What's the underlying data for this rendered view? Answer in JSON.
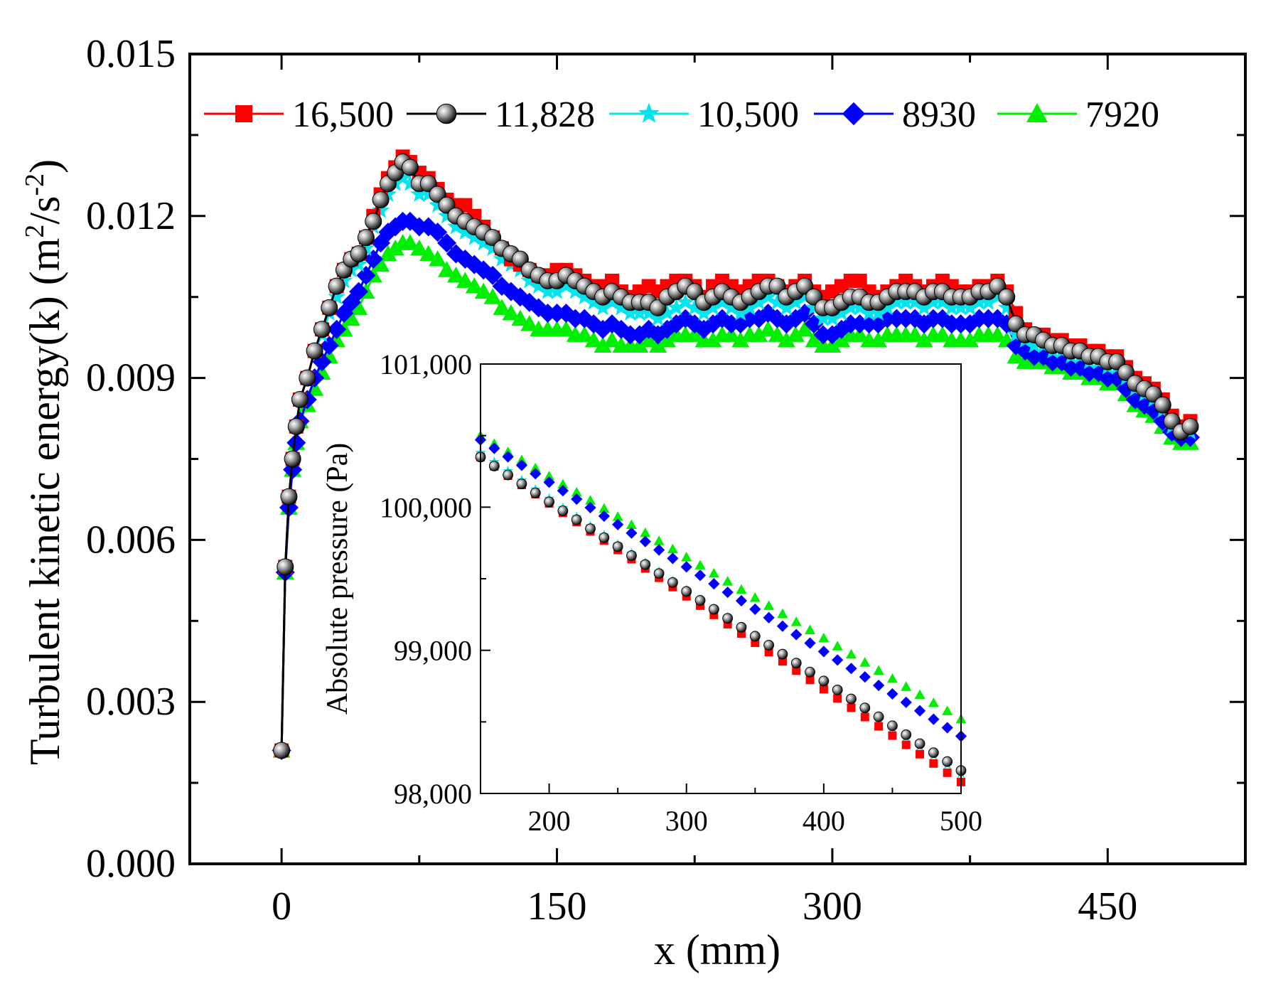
{
  "chart_data": [
    {
      "id": "main",
      "type": "line",
      "title": "",
      "xlabel": "x (mm)",
      "ylabel": "Turbulent kinetic energy(k) (m²/s⁻²)",
      "ylabel_parts": {
        "base": "Turbulent kinetic energy(k) (m",
        "sup1": "2",
        "mid": "/s",
        "sup2": "-2",
        "end": ")"
      },
      "xlim": [
        -50,
        525
      ],
      "ylim": [
        0,
        0.015
      ],
      "x_ticks": [
        0,
        150,
        300,
        450
      ],
      "x_tick_labels": [
        "0",
        "150",
        "300",
        "450"
      ],
      "y_ticks": [
        0,
        0.003,
        0.006,
        0.009,
        0.012,
        0.015
      ],
      "y_tick_labels": [
        "0.000",
        "0.003",
        "0.006",
        "0.009",
        "0.012",
        "0.015"
      ],
      "grid": false,
      "legend_position": "top",
      "x": [
        0,
        2,
        4,
        6,
        8,
        10,
        14,
        18,
        22,
        26,
        30,
        34,
        38,
        42,
        46,
        50,
        54,
        58,
        62,
        66,
        70,
        75,
        80,
        85,
        90,
        95,
        100,
        105,
        110,
        115,
        120,
        125,
        130,
        135,
        140,
        145,
        150,
        155,
        160,
        165,
        170,
        175,
        180,
        185,
        190,
        195,
        200,
        205,
        210,
        215,
        220,
        225,
        230,
        235,
        240,
        245,
        250,
        255,
        260,
        265,
        270,
        275,
        280,
        285,
        290,
        295,
        300,
        305,
        310,
        315,
        320,
        325,
        330,
        335,
        340,
        345,
        350,
        355,
        360,
        365,
        370,
        375,
        380,
        385,
        390,
        395,
        400,
        405,
        410,
        415,
        420,
        425,
        430,
        435,
        440,
        445,
        450,
        455,
        460,
        465,
        470,
        475,
        480,
        485,
        490,
        495
      ],
      "series": [
        {
          "name": "16,500",
          "color": "#ff0000",
          "marker": "square",
          "values": [
            0.0021,
            0.0055,
            0.0068,
            0.0075,
            0.0081,
            0.0086,
            0.009,
            0.0095,
            0.0099,
            0.0103,
            0.0107,
            0.011,
            0.0112,
            0.0113,
            0.0116,
            0.012,
            0.0124,
            0.0127,
            0.0129,
            0.0131,
            0.013,
            0.0128,
            0.0127,
            0.0125,
            0.0123,
            0.0122,
            0.0122,
            0.012,
            0.0118,
            0.0116,
            0.0114,
            0.0112,
            0.0111,
            0.011,
            0.0109,
            0.0109,
            0.011,
            0.011,
            0.0109,
            0.0108,
            0.0107,
            0.0107,
            0.0108,
            0.0106,
            0.0105,
            0.0106,
            0.0107,
            0.0106,
            0.0107,
            0.0108,
            0.0108,
            0.0107,
            0.0105,
            0.0107,
            0.0108,
            0.0107,
            0.0106,
            0.0107,
            0.0108,
            0.0108,
            0.0107,
            0.0106,
            0.0107,
            0.0108,
            0.0106,
            0.0105,
            0.0106,
            0.0107,
            0.0108,
            0.0108,
            0.0106,
            0.0105,
            0.0106,
            0.0107,
            0.0108,
            0.0107,
            0.0106,
            0.0107,
            0.0108,
            0.0107,
            0.0106,
            0.0106,
            0.0107,
            0.0107,
            0.0108,
            0.0106,
            0.0102,
            0.0099,
            0.0098,
            0.0098,
            0.0097,
            0.0097,
            0.0096,
            0.0096,
            0.0095,
            0.0095,
            0.0094,
            0.0094,
            0.0092,
            0.009,
            0.0089,
            0.0088,
            0.0086,
            0.0083,
            0.0081,
            0.0082
          ]
        },
        {
          "name": "11,828",
          "color": "#000000",
          "marker": "sphere",
          "values": [
            0.0021,
            0.0055,
            0.0068,
            0.0075,
            0.0081,
            0.0086,
            0.009,
            0.0095,
            0.0099,
            0.0103,
            0.0107,
            0.011,
            0.0112,
            0.0113,
            0.0116,
            0.0119,
            0.0123,
            0.0126,
            0.0128,
            0.013,
            0.0129,
            0.0126,
            0.0126,
            0.0124,
            0.0122,
            0.012,
            0.0119,
            0.0118,
            0.0117,
            0.0116,
            0.0114,
            0.0113,
            0.0112,
            0.011,
            0.0109,
            0.0108,
            0.0108,
            0.0109,
            0.0108,
            0.0107,
            0.0106,
            0.0105,
            0.0106,
            0.0105,
            0.0104,
            0.0104,
            0.0104,
            0.0103,
            0.0105,
            0.0106,
            0.0107,
            0.0106,
            0.0104,
            0.0105,
            0.0106,
            0.0105,
            0.0104,
            0.0105,
            0.0106,
            0.0107,
            0.0107,
            0.0105,
            0.0106,
            0.0107,
            0.0105,
            0.0103,
            0.0103,
            0.0104,
            0.0105,
            0.0105,
            0.0104,
            0.0104,
            0.0105,
            0.0106,
            0.0106,
            0.0106,
            0.0105,
            0.0106,
            0.0106,
            0.0105,
            0.0105,
            0.0105,
            0.0106,
            0.0106,
            0.0107,
            0.0105,
            0.01,
            0.0098,
            0.0098,
            0.0097,
            0.0096,
            0.0096,
            0.0095,
            0.0095,
            0.0094,
            0.0094,
            0.0093,
            0.0093,
            0.0091,
            0.0089,
            0.0088,
            0.0087,
            0.0085,
            0.0082,
            0.008,
            0.0081
          ]
        },
        {
          "name": "10,500",
          "color": "#00e5ee",
          "marker": "star",
          "values": [
            0.0021,
            0.0055,
            0.0068,
            0.0075,
            0.0081,
            0.0086,
            0.009,
            0.0095,
            0.0098,
            0.0102,
            0.0105,
            0.0108,
            0.011,
            0.0111,
            0.0114,
            0.0118,
            0.0121,
            0.0124,
            0.0126,
            0.0127,
            0.0126,
            0.0124,
            0.0124,
            0.0122,
            0.012,
            0.0118,
            0.0117,
            0.0116,
            0.0115,
            0.0114,
            0.0112,
            0.0111,
            0.011,
            0.0108,
            0.0107,
            0.0106,
            0.0106,
            0.0107,
            0.0106,
            0.0105,
            0.0104,
            0.0103,
            0.0104,
            0.0103,
            0.0102,
            0.0102,
            0.0102,
            0.0101,
            0.0102,
            0.0103,
            0.0104,
            0.0103,
            0.0102,
            0.0103,
            0.0104,
            0.0103,
            0.0102,
            0.0103,
            0.0104,
            0.0105,
            0.0104,
            0.0103,
            0.0104,
            0.0105,
            0.0103,
            0.0101,
            0.0101,
            0.0102,
            0.0103,
            0.0103,
            0.0102,
            0.0102,
            0.0103,
            0.0104,
            0.0104,
            0.0104,
            0.0103,
            0.0104,
            0.0104,
            0.0103,
            0.0103,
            0.0103,
            0.0104,
            0.0104,
            0.0105,
            0.0103,
            0.0098,
            0.0097,
            0.0096,
            0.0096,
            0.0095,
            0.0095,
            0.0094,
            0.0094,
            0.0093,
            0.0093,
            0.0092,
            0.0092,
            0.009,
            0.0088,
            0.0087,
            0.0086,
            0.0084,
            0.0081,
            0.008,
            0.008
          ]
        },
        {
          "name": "8930",
          "color": "#0000ff",
          "marker": "diamond",
          "values": [
            0.0021,
            0.0054,
            0.0066,
            0.0073,
            0.0078,
            0.0082,
            0.0086,
            0.009,
            0.0093,
            0.0096,
            0.0099,
            0.0102,
            0.0104,
            0.0106,
            0.0109,
            0.0112,
            0.0115,
            0.0117,
            0.0118,
            0.0119,
            0.0119,
            0.0118,
            0.0118,
            0.0117,
            0.0115,
            0.0113,
            0.0112,
            0.0111,
            0.011,
            0.0109,
            0.0107,
            0.0106,
            0.0105,
            0.0104,
            0.0103,
            0.0102,
            0.0102,
            0.0102,
            0.0101,
            0.0101,
            0.01,
            0.0099,
            0.01,
            0.0099,
            0.0098,
            0.0098,
            0.0099,
            0.0098,
            0.0099,
            0.01,
            0.0101,
            0.01,
            0.0099,
            0.01,
            0.0101,
            0.01,
            0.01,
            0.0101,
            0.0101,
            0.0102,
            0.0101,
            0.01,
            0.0101,
            0.0102,
            0.01,
            0.0098,
            0.0098,
            0.0099,
            0.01,
            0.01,
            0.01,
            0.01,
            0.0101,
            0.0101,
            0.0101,
            0.0101,
            0.01,
            0.0101,
            0.0101,
            0.01,
            0.01,
            0.01,
            0.0101,
            0.0101,
            0.0101,
            0.01,
            0.0096,
            0.0095,
            0.0094,
            0.0094,
            0.0093,
            0.0093,
            0.0092,
            0.0092,
            0.0091,
            0.0091,
            0.009,
            0.009,
            0.0088,
            0.0086,
            0.0085,
            0.0084,
            0.0082,
            0.008,
            0.0079,
            0.0079
          ]
        },
        {
          "name": "7920",
          "color": "#00ee00",
          "marker": "triangle",
          "values": [
            0.0021,
            0.0054,
            0.0066,
            0.0073,
            0.0078,
            0.0082,
            0.0085,
            0.0088,
            0.0091,
            0.0094,
            0.0097,
            0.0099,
            0.0101,
            0.0103,
            0.0106,
            0.0109,
            0.0111,
            0.0113,
            0.0114,
            0.0115,
            0.0115,
            0.0114,
            0.0113,
            0.0112,
            0.011,
            0.0109,
            0.0108,
            0.0107,
            0.0106,
            0.0105,
            0.0103,
            0.0102,
            0.0101,
            0.01,
            0.0099,
            0.0099,
            0.0099,
            0.0099,
            0.0098,
            0.0098,
            0.0097,
            0.0096,
            0.0097,
            0.0096,
            0.0096,
            0.0096,
            0.0097,
            0.0096,
            0.0097,
            0.0098,
            0.0098,
            0.0098,
            0.0097,
            0.0097,
            0.0098,
            0.0098,
            0.0097,
            0.0098,
            0.0098,
            0.0099,
            0.0098,
            0.0097,
            0.0098,
            0.0099,
            0.0097,
            0.0096,
            0.0096,
            0.0097,
            0.0098,
            0.0098,
            0.0097,
            0.0097,
            0.0098,
            0.0098,
            0.0098,
            0.0098,
            0.0097,
            0.0098,
            0.0098,
            0.0097,
            0.0097,
            0.0097,
            0.0098,
            0.0098,
            0.0098,
            0.0097,
            0.0094,
            0.0093,
            0.0093,
            0.0093,
            0.0092,
            0.0092,
            0.0091,
            0.0091,
            0.009,
            0.009,
            0.0089,
            0.0089,
            0.0087,
            0.0085,
            0.0084,
            0.0083,
            0.0081,
            0.0079,
            0.0078,
            0.0078
          ]
        }
      ]
    },
    {
      "id": "inset",
      "type": "scatter",
      "title": "",
      "xlabel": "",
      "ylabel": "Absolute pressure (Pa)",
      "xlim": [
        150,
        500
      ],
      "ylim": [
        98000,
        101000
      ],
      "x_ticks": [
        200,
        300,
        400,
        500
      ],
      "x_tick_labels": [
        "200",
        "300",
        "400",
        "500"
      ],
      "y_ticks": [
        98000,
        99000,
        100000,
        101000
      ],
      "y_tick_labels": [
        "98,000",
        "99,000",
        "100,000",
        "101,000"
      ],
      "grid": false,
      "series": [
        {
          "name": "16,500",
          "color": "#ff0000",
          "marker": "square",
          "x_start": 150,
          "x_end": 500,
          "x_step": 10,
          "y_start": 100350,
          "y_end": 98080
        },
        {
          "name": "11,828",
          "color": "#000000",
          "marker": "sphere",
          "x_start": 150,
          "x_end": 500,
          "x_step": 10,
          "y_start": 100350,
          "y_end": 98160
        },
        {
          "name": "10,500",
          "color": "#00e5ee",
          "marker": "star",
          "x_start": 150,
          "x_end": 500,
          "x_step": 10,
          "y_start": 100380,
          "y_end": 98140
        },
        {
          "name": "8930",
          "color": "#0000ff",
          "marker": "diamond",
          "x_start": 150,
          "x_end": 500,
          "x_step": 10,
          "y_start": 100470,
          "y_end": 98400
        },
        {
          "name": "7920",
          "color": "#00ee00",
          "marker": "triangle",
          "x_start": 150,
          "x_end": 500,
          "x_step": 10,
          "y_start": 100500,
          "y_end": 98520
        }
      ]
    }
  ]
}
